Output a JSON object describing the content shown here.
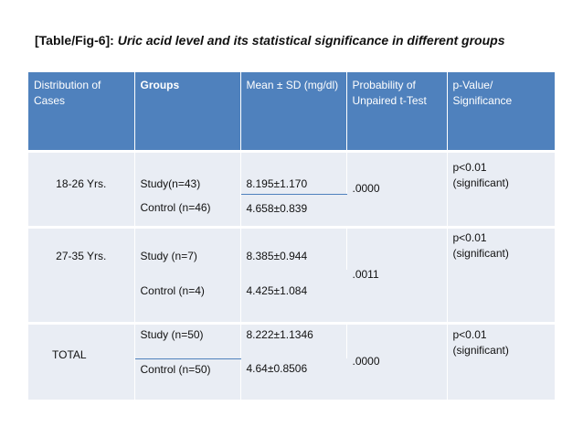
{
  "caption": {
    "tag": "[Table/Fig-6]:",
    "text": "Uric acid level and its statistical significance in different groups"
  },
  "table": {
    "headers": [
      "Distribution of Cases",
      "Groups",
      "Mean ± SD (mg/dl)",
      "Probability of Unpaired t-Test",
      "p-Value/ Significance"
    ],
    "rows": [
      {
        "distribution": "18-26 Yrs.",
        "study_group": "Study(n=43)",
        "study_mean": "8.195±1.170",
        "control_group": "Control (n=46)",
        "control_mean": "4.658±0.839",
        "probability": ".0000",
        "p_value": "p<0.01",
        "significance": "(significant)"
      },
      {
        "distribution": "27-35 Yrs.",
        "study_group": "Study (n=7)",
        "study_mean": "8.385±0.944",
        "control_group": "Control (n=4)",
        "control_mean": "4.425±1.084",
        "probability": ".0011",
        "p_value": "p<0.01",
        "significance": "(significant)"
      },
      {
        "distribution": "TOTAL",
        "study_group": "Study (n=50)",
        "study_mean": "8.222±1.1346",
        "control_group": "Control (n=50)",
        "control_mean": "4.64±0.8506",
        "probability": ".0000",
        "p_value": "p<0.01",
        "significance": "(significant)"
      }
    ]
  },
  "colors": {
    "header_bg": "#4f81bd",
    "body_bg": "#e9edf4",
    "divider": "#4f81bd"
  }
}
